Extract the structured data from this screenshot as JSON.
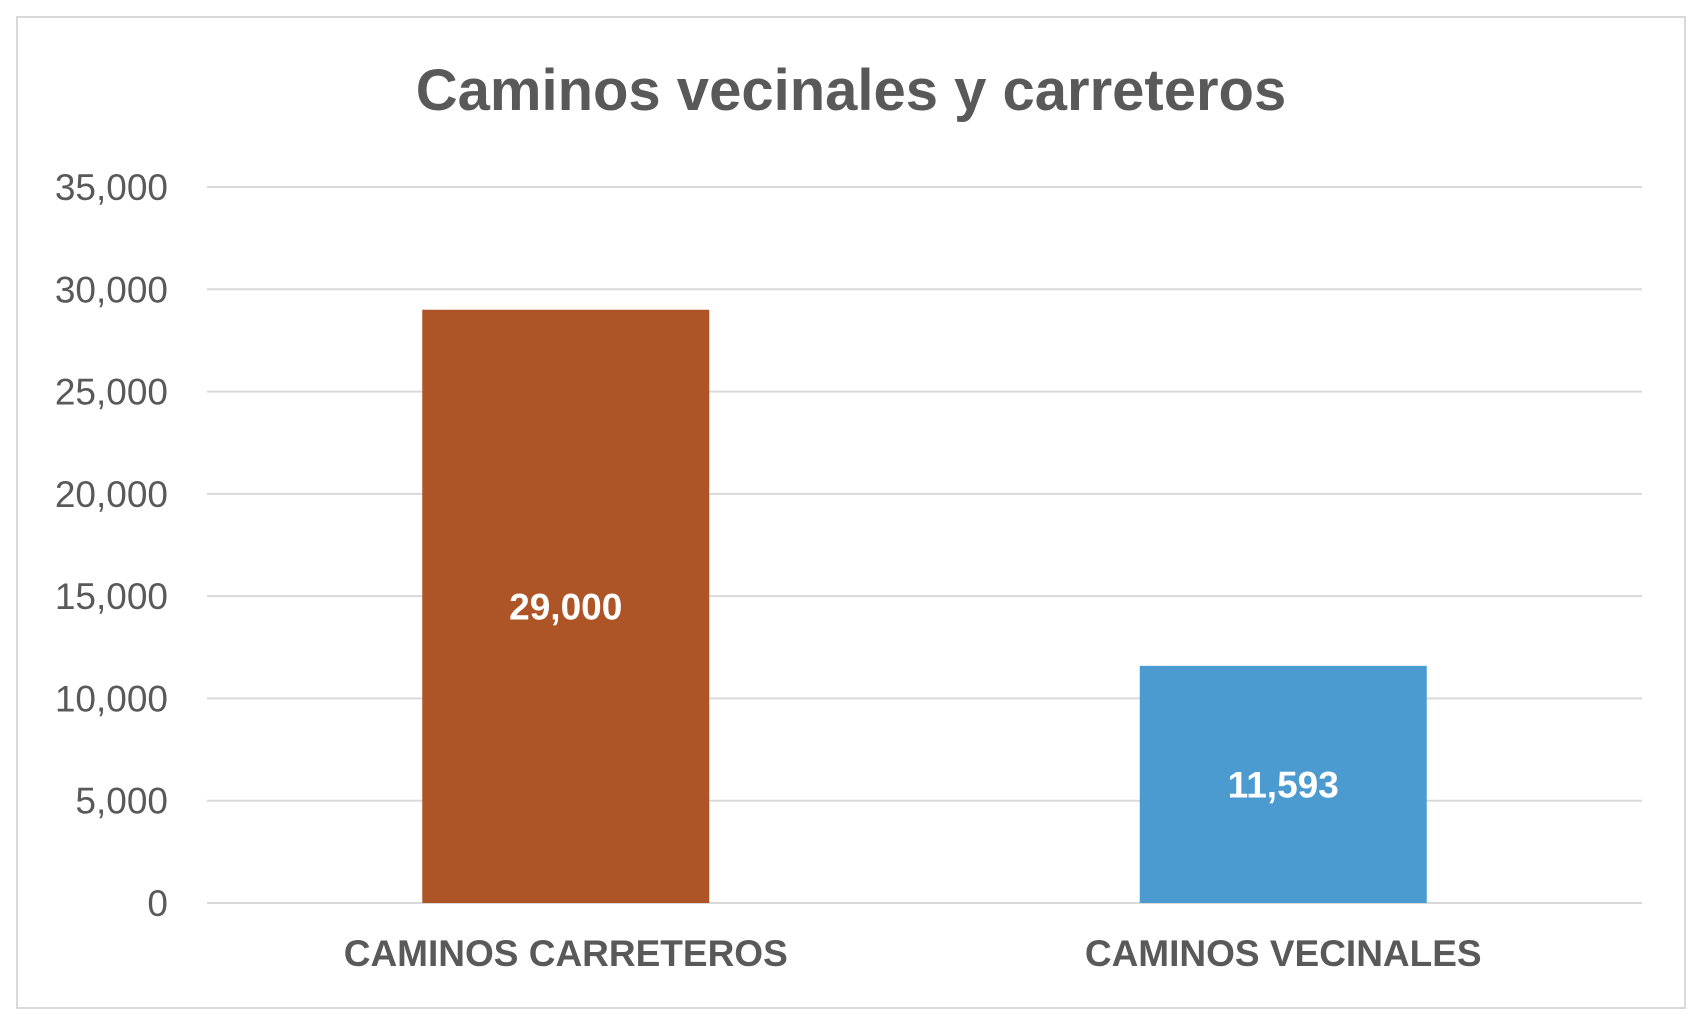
{
  "chart_data": {
    "type": "bar",
    "title": "Caminos vecinales y carreteros",
    "xlabel": "",
    "ylabel": "",
    "categories": [
      "CAMINOS CARRETEROS",
      "CAMINOS VECINALES"
    ],
    "values": [
      29000,
      11593
    ],
    "data_labels": [
      "29,000",
      "11,593"
    ],
    "bar_colors": [
      "#ae5527",
      "#4b9bd0"
    ],
    "ylim": [
      0,
      35000
    ],
    "yticks": [
      0,
      5000,
      10000,
      15000,
      20000,
      25000,
      30000,
      35000
    ],
    "ytick_labels": [
      "0",
      "5,000",
      "10,000",
      "15,000",
      "20,000",
      "25,000",
      "30,000",
      "35,000"
    ],
    "grid": true,
    "legend": "none"
  }
}
